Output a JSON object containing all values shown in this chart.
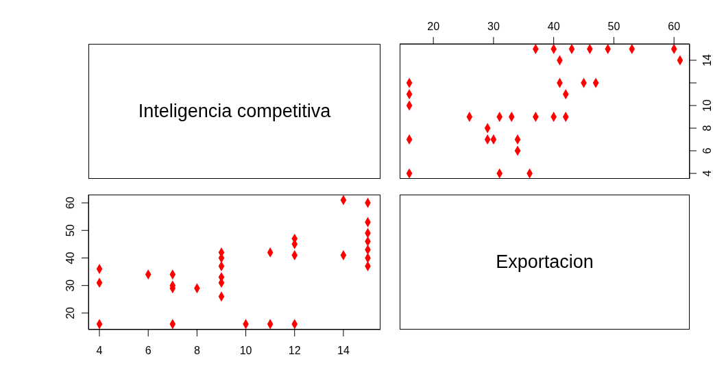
{
  "chart_data": [
    {
      "type": "other",
      "title": "Inteligencia competitiva"
    },
    {
      "type": "scatter",
      "marker": "diamond",
      "grid": false,
      "xlim": [
        14.4,
        62.6
      ],
      "xticks": [
        20,
        30,
        40,
        50,
        60
      ],
      "ylim": [
        3.52,
        15.45
      ],
      "yticks": [
        4,
        6,
        8,
        10,
        {
          "value": 12,
          "label": null
        },
        14
      ],
      "series": [
        {
          "color": "#ff0000",
          "x": [
            37,
            40,
            43,
            46,
            49,
            53,
            60,
            41,
            61,
            16,
            41,
            45,
            47,
            16,
            42,
            16,
            26,
            31,
            33,
            37,
            40,
            42,
            29,
            16,
            29,
            30,
            34,
            34,
            16,
            31,
            36
          ],
          "values": [
            15,
            15,
            15,
            15,
            15,
            15,
            15,
            14,
            14,
            12,
            12,
            12,
            12,
            11,
            11,
            10,
            9,
            9,
            9,
            9,
            9,
            9,
            8,
            7,
            7,
            7,
            7,
            6,
            4,
            4,
            4
          ]
        }
      ]
    },
    {
      "type": "scatter",
      "marker": "diamond",
      "grid": false,
      "xlim": [
        3.55,
        15.52
      ],
      "xticks": [
        4,
        6,
        8,
        10,
        12,
        14
      ],
      "ylim": [
        14,
        63
      ],
      "yticks": [
        20,
        30,
        40,
        50,
        60
      ],
      "series": [
        {
          "color": "#ff0000",
          "x": [
            4,
            4,
            4,
            6,
            7,
            7,
            7,
            7,
            8,
            9,
            9,
            9,
            9,
            9,
            9,
            10,
            11,
            11,
            12,
            12,
            12,
            12,
            14,
            14,
            15,
            15,
            15,
            15,
            15,
            15,
            15
          ],
          "values": [
            16,
            31,
            36,
            34,
            16,
            29,
            30,
            34,
            29,
            26,
            31,
            33,
            37,
            40,
            42,
            16,
            16,
            42,
            16,
            41,
            45,
            47,
            41,
            61,
            37,
            40,
            43,
            46,
            49,
            53,
            60
          ]
        }
      ]
    },
    {
      "type": "other",
      "title": "Exportacion"
    }
  ]
}
